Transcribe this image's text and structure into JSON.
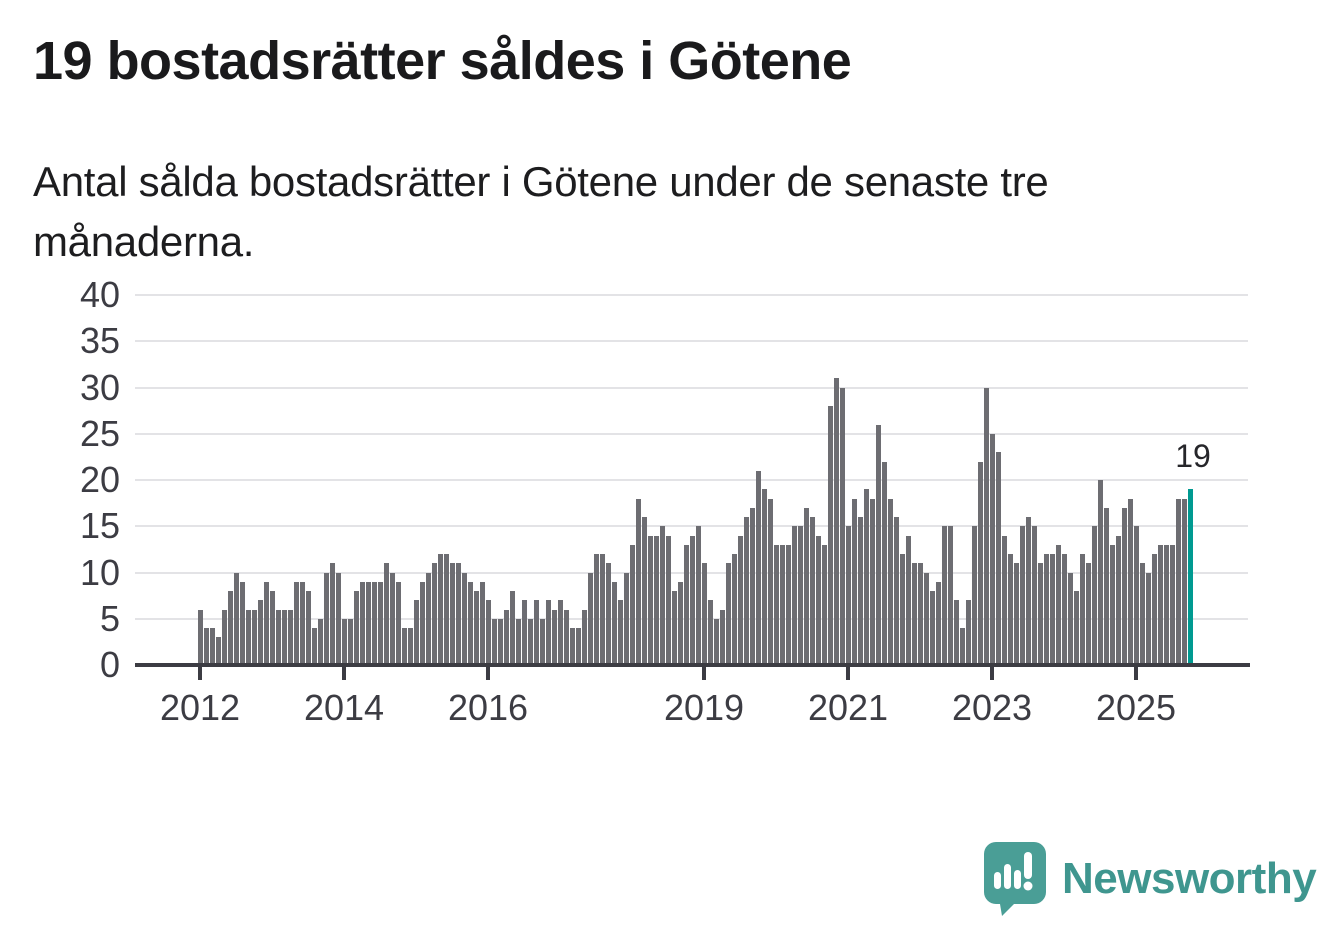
{
  "title": "19 bostadsrätter såldes i Götene",
  "subtitle": "Antal sålda bostadsrätter i Götene under de senaste tre månaderna.",
  "annotation": {
    "text": "19"
  },
  "footer": {
    "brand": "Newsworthy"
  },
  "colors": {
    "bar": "#6d6d72",
    "highlight": "#009a91",
    "axis": "#3c3c43",
    "grid": "#e3e3e6",
    "brand_text": "#3f968f",
    "logo_bubble": "#4a9e96"
  },
  "chart_data": {
    "type": "bar",
    "title": "19 bostadsrätter såldes i Götene",
    "subtitle": "Antal sålda bostadsrätter i Götene under de senaste tre månaderna.",
    "xlabel": "",
    "ylabel": "",
    "grid": true,
    "ylim": [
      0,
      40
    ],
    "y_ticks": [
      0,
      5,
      10,
      15,
      20,
      25,
      30,
      35,
      40
    ],
    "x_tick_labels": [
      "2012",
      "2014",
      "2016",
      "2019",
      "2021",
      "2023",
      "2025"
    ],
    "x_start_month": "2012-01",
    "x_end_month": "2025-10",
    "highlight_last_bar": true,
    "last_bar_label": "19",
    "values_by_year": {
      "2012": [
        6,
        4,
        4,
        3,
        6,
        8,
        10,
        9,
        6,
        6,
        7,
        9
      ],
      "2013": [
        8,
        6,
        6,
        6,
        9,
        9,
        8,
        4,
        5,
        10,
        11,
        10
      ],
      "2014": [
        5,
        5,
        8,
        9,
        9,
        9,
        9,
        11,
        10,
        9,
        4,
        4
      ],
      "2015": [
        7,
        9,
        10,
        11,
        12,
        12,
        11,
        11,
        10,
        9,
        8,
        9
      ],
      "2016": [
        7,
        5,
        5,
        6,
        8,
        5,
        7,
        5,
        7,
        5,
        7,
        6
      ],
      "2017": [
        7,
        6,
        4,
        4,
        6,
        10,
        12,
        12,
        11,
        9,
        7,
        10
      ],
      "2018": [
        13,
        18,
        16,
        14,
        14,
        15,
        14,
        8,
        9,
        13,
        14,
        15
      ],
      "2019": [
        11,
        7,
        5,
        6,
        11,
        12,
        14,
        16,
        17,
        21,
        19,
        18
      ],
      "2020": [
        13,
        13,
        13,
        15,
        15,
        17,
        16,
        14,
        13,
        28,
        31,
        30
      ],
      "2021": [
        15,
        18,
        16,
        19,
        18,
        26,
        22,
        18,
        16,
        12,
        14,
        11
      ],
      "2022": [
        11,
        10,
        8,
        9,
        15,
        15,
        7,
        4,
        7,
        15,
        22,
        30
      ],
      "2023": [
        25,
        23,
        14,
        12,
        11,
        15,
        16,
        15,
        11,
        12,
        12,
        13
      ],
      "2024": [
        12,
        10,
        8,
        12,
        11,
        15,
        20,
        17,
        13,
        14,
        17,
        18
      ],
      "2025": [
        15,
        11,
        10,
        12,
        13,
        13,
        13,
        18,
        18,
        19
      ]
    }
  }
}
